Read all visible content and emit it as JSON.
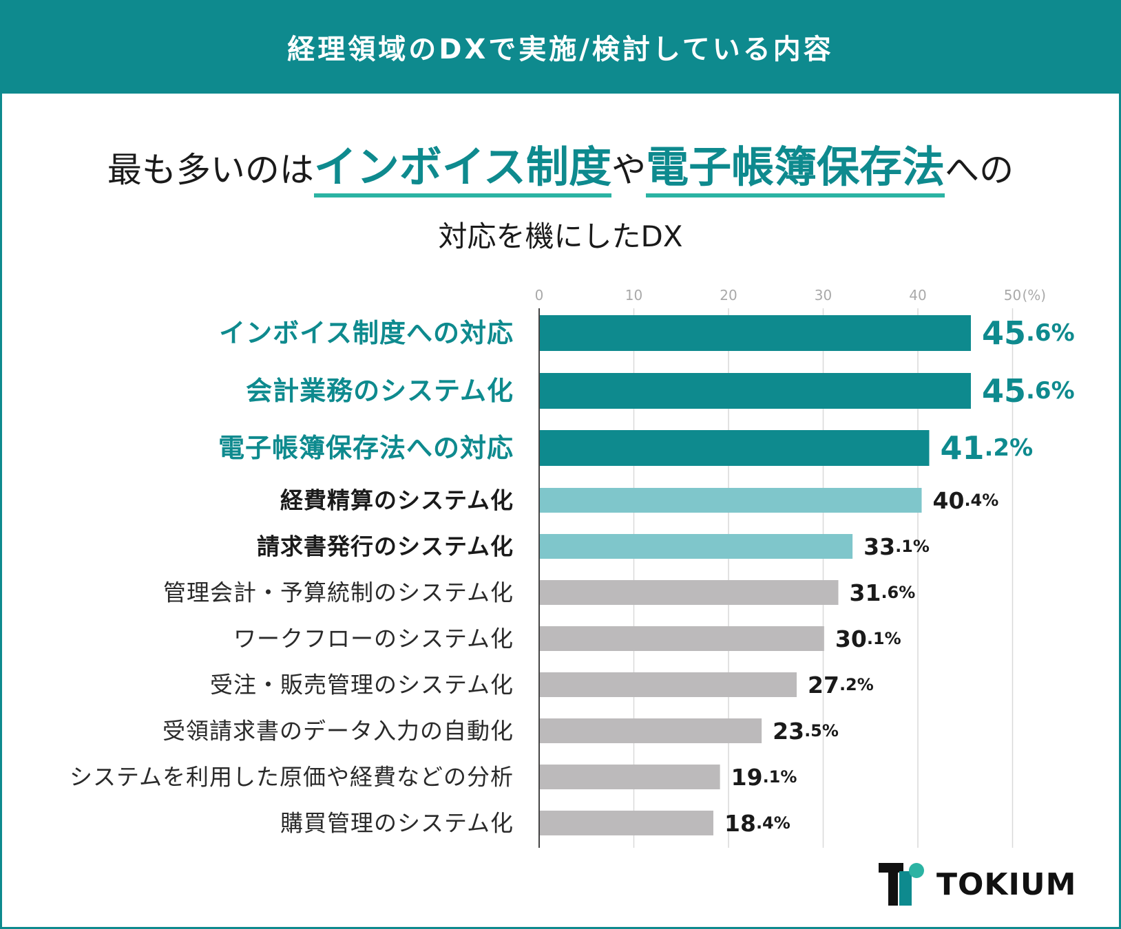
{
  "header": {
    "title": "経理領域のDXで実施/検討している内容"
  },
  "headline": {
    "part1": "最も多いのは",
    "highlight1": "インボイス制度",
    "part2": "や",
    "highlight2": "電子帳簿保存法",
    "part3": "への",
    "line2": "対応を機にしたDX"
  },
  "colors": {
    "brand": "#0e8a8e",
    "secondary": "#7fc6cb",
    "neutral": "#bcbabb",
    "underline": "#2bb3a3"
  },
  "chart_data": {
    "type": "bar",
    "orientation": "horizontal",
    "xlim": [
      0,
      50
    ],
    "xticks": [
      "0",
      "10",
      "20",
      "30",
      "40",
      "50"
    ],
    "unit_label": "(%)",
    "grid": true,
    "categories": [
      "インボイス制度への対応",
      "会計業務のシステム化",
      "電子帳簿保存法への対応",
      "経費精算のシステム化",
      "請求書発行のシステム化",
      "管理会計・予算統制のシステム化",
      "ワークフローのシステム化",
      "受注・販売管理のシステム化",
      "受領請求書のデータ入力の自動化",
      "システムを利用した原価や経費などの分析",
      "購買管理のシステム化"
    ],
    "values": [
      45.6,
      45.6,
      41.2,
      40.4,
      33.1,
      31.6,
      30.1,
      27.2,
      23.5,
      19.1,
      18.4
    ],
    "value_labels": [
      [
        "45",
        ".6%"
      ],
      [
        "45",
        ".6%"
      ],
      [
        "41",
        ".2%"
      ],
      [
        "40",
        ".4%"
      ],
      [
        "33",
        ".1%"
      ],
      [
        "31",
        ".6%"
      ],
      [
        "30",
        ".1%"
      ],
      [
        "27",
        ".2%"
      ],
      [
        "23",
        ".5%"
      ],
      [
        "19",
        ".1%"
      ],
      [
        "18",
        ".4%"
      ]
    ],
    "tiers": [
      "top",
      "top",
      "top",
      "mid",
      "mid",
      "low",
      "low",
      "low",
      "low",
      "low",
      "low"
    ]
  },
  "logo": {
    "text": "TOKIUM",
    "icon": "tokium-logo-icon"
  }
}
